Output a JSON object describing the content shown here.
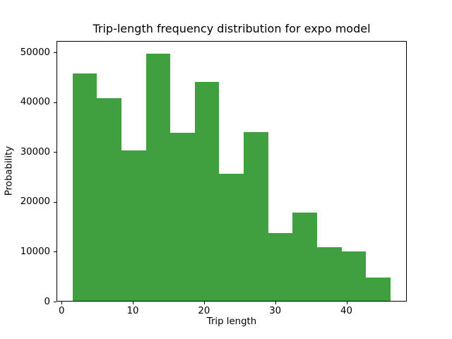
{
  "chart_data": {
    "type": "bar",
    "subtype": "histogram",
    "title": "Trip-length frequency distribution for expo model",
    "xlabel": "Trip length",
    "ylabel": "Probability",
    "bar_color": "#40a040",
    "grid": false,
    "legend": null,
    "xlim": [
      -0.72,
      48.48
    ],
    "ylim": [
      0,
      52350
    ],
    "xticks": [
      0,
      10,
      20,
      30,
      40
    ],
    "yticks": [
      0,
      10000,
      20000,
      30000,
      40000,
      50000
    ],
    "bin_edges": [
      1.53,
      4.96,
      8.4,
      11.83,
      15.27,
      18.7,
      22.14,
      25.57,
      29.01,
      32.44,
      35.88,
      39.31,
      42.75,
      46.18
    ],
    "counts": [
      45800,
      40750,
      30350,
      49800,
      33800,
      44100,
      25600,
      33950,
      13750,
      17900,
      10900,
      10050,
      4850
    ]
  }
}
